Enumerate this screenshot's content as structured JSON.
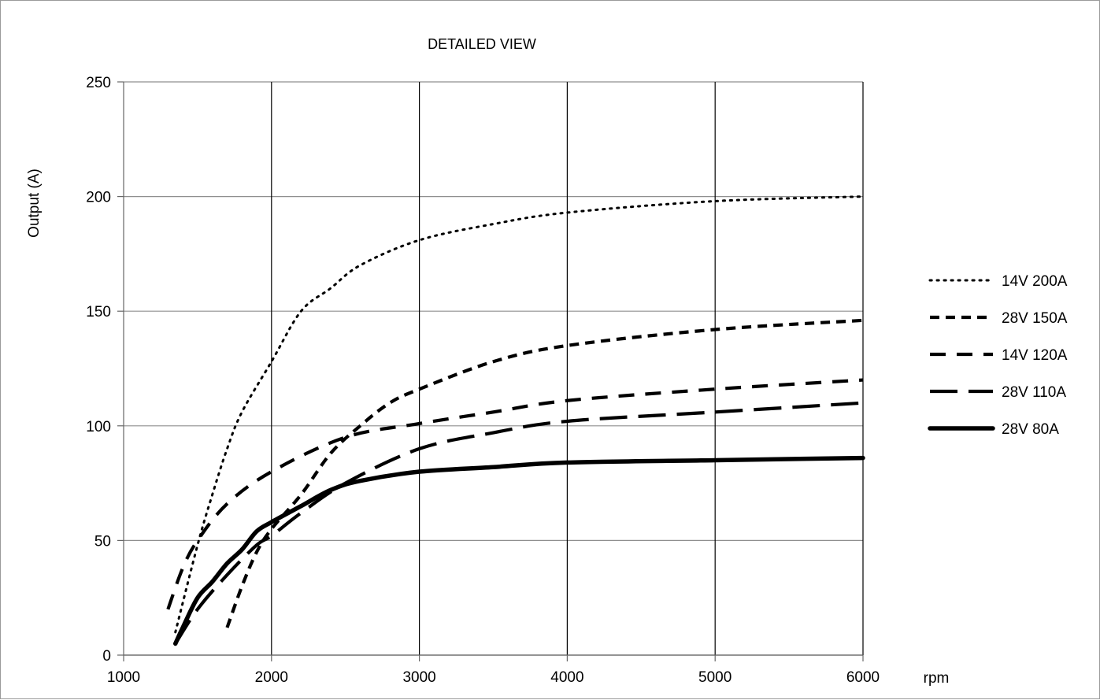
{
  "chart_data": {
    "type": "line",
    "title": "DETAILED VIEW",
    "xlabel": "rpm",
    "ylabel": "Output (A)",
    "xlim": [
      1000,
      6000
    ],
    "ylim": [
      0,
      250
    ],
    "x_ticks": [
      1000,
      2000,
      3000,
      4000,
      5000,
      6000
    ],
    "y_ticks": [
      0,
      50,
      100,
      150,
      200,
      250
    ],
    "x_ticks_labels": [
      "1000",
      "2000",
      "3000",
      "4000",
      "5000",
      "6000"
    ],
    "y_ticks_labels": [
      "0",
      "50",
      "100",
      "150",
      "200",
      "250"
    ],
    "grid": {
      "x_major": true,
      "y_major": true
    },
    "legend_position": "right",
    "series": [
      {
        "name": "14V 200A",
        "style": "dotted",
        "points": [
          [
            1350,
            10
          ],
          [
            1500,
            48
          ],
          [
            1600,
            70
          ],
          [
            1700,
            90
          ],
          [
            1800,
            106
          ],
          [
            2000,
            128
          ],
          [
            2200,
            150
          ],
          [
            2400,
            160
          ],
          [
            2600,
            170
          ],
          [
            3000,
            181
          ],
          [
            3500,
            188
          ],
          [
            4000,
            193
          ],
          [
            5000,
            198
          ],
          [
            6000,
            200
          ]
        ]
      },
      {
        "name": "28V 150A",
        "style": "short-dash",
        "points": [
          [
            1700,
            12
          ],
          [
            1800,
            30
          ],
          [
            1900,
            45
          ],
          [
            2000,
            55
          ],
          [
            2200,
            70
          ],
          [
            2400,
            88
          ],
          [
            2600,
            100
          ],
          [
            2800,
            110
          ],
          [
            3000,
            116
          ],
          [
            3500,
            128
          ],
          [
            4000,
            135
          ],
          [
            5000,
            142
          ],
          [
            6000,
            146
          ]
        ]
      },
      {
        "name": "14V 120A",
        "style": "medium-dash",
        "points": [
          [
            1300,
            20
          ],
          [
            1400,
            38
          ],
          [
            1500,
            50
          ],
          [
            1700,
            66
          ],
          [
            2000,
            80
          ],
          [
            2500,
            95
          ],
          [
            3000,
            101
          ],
          [
            3500,
            106
          ],
          [
            4000,
            111
          ],
          [
            5000,
            116
          ],
          [
            6000,
            120
          ]
        ]
      },
      {
        "name": "28V 110A",
        "style": "long-dash",
        "points": [
          [
            1350,
            5
          ],
          [
            1500,
            20
          ],
          [
            1700,
            35
          ],
          [
            1900,
            48
          ],
          [
            2000,
            52
          ],
          [
            2200,
            62
          ],
          [
            2500,
            75
          ],
          [
            3000,
            90
          ],
          [
            3500,
            97
          ],
          [
            4000,
            102
          ],
          [
            5000,
            106
          ],
          [
            6000,
            110
          ]
        ]
      },
      {
        "name": "28V 80A",
        "style": "solid",
        "points": [
          [
            1350,
            5
          ],
          [
            1400,
            12
          ],
          [
            1500,
            25
          ],
          [
            1600,
            32
          ],
          [
            1700,
            40
          ],
          [
            1800,
            46
          ],
          [
            1900,
            54
          ],
          [
            2000,
            58
          ],
          [
            2200,
            65
          ],
          [
            2400,
            72
          ],
          [
            2600,
            76
          ],
          [
            3000,
            80
          ],
          [
            3500,
            82
          ],
          [
            4000,
            84
          ],
          [
            5000,
            85
          ],
          [
            6000,
            86
          ]
        ]
      }
    ]
  }
}
